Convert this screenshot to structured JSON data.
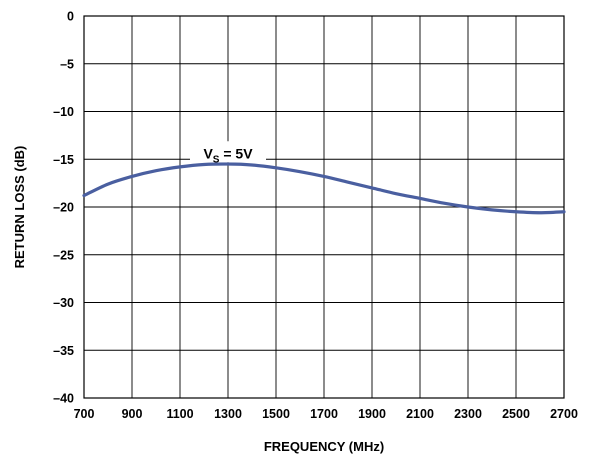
{
  "chart_data": {
    "type": "line",
    "xlabel": "FREQUENCY (MHz)",
    "ylabel": "RETURN LOSS (dB)",
    "xlim": [
      700,
      2700
    ],
    "ylim": [
      -40,
      0
    ],
    "x_ticks": [
      "700",
      "900",
      "1100",
      "1300",
      "1500",
      "1700",
      "1900",
      "2100",
      "2300",
      "2500",
      "2700"
    ],
    "y_ticks": [
      "0",
      "–5",
      "–10",
      "–15",
      "–20",
      "–25",
      "–30",
      "–35",
      "–40"
    ],
    "grid": true,
    "series": [
      {
        "annotation": {
          "main": "V",
          "sub": "S",
          "rest": " = 5V",
          "x": 1300,
          "y": -15.0
        },
        "color": "#4a5fa0",
        "x": [
          700,
          800,
          900,
          1000,
          1100,
          1200,
          1300,
          1400,
          1500,
          1600,
          1700,
          1800,
          1900,
          2000,
          2100,
          2200,
          2300,
          2400,
          2500,
          2600,
          2700
        ],
        "y": [
          -18.8,
          -17.6,
          -16.8,
          -16.2,
          -15.8,
          -15.55,
          -15.5,
          -15.6,
          -15.9,
          -16.3,
          -16.8,
          -17.4,
          -18.0,
          -18.6,
          -19.1,
          -19.6,
          -20.0,
          -20.3,
          -20.5,
          -20.6,
          -20.5
        ]
      }
    ]
  }
}
